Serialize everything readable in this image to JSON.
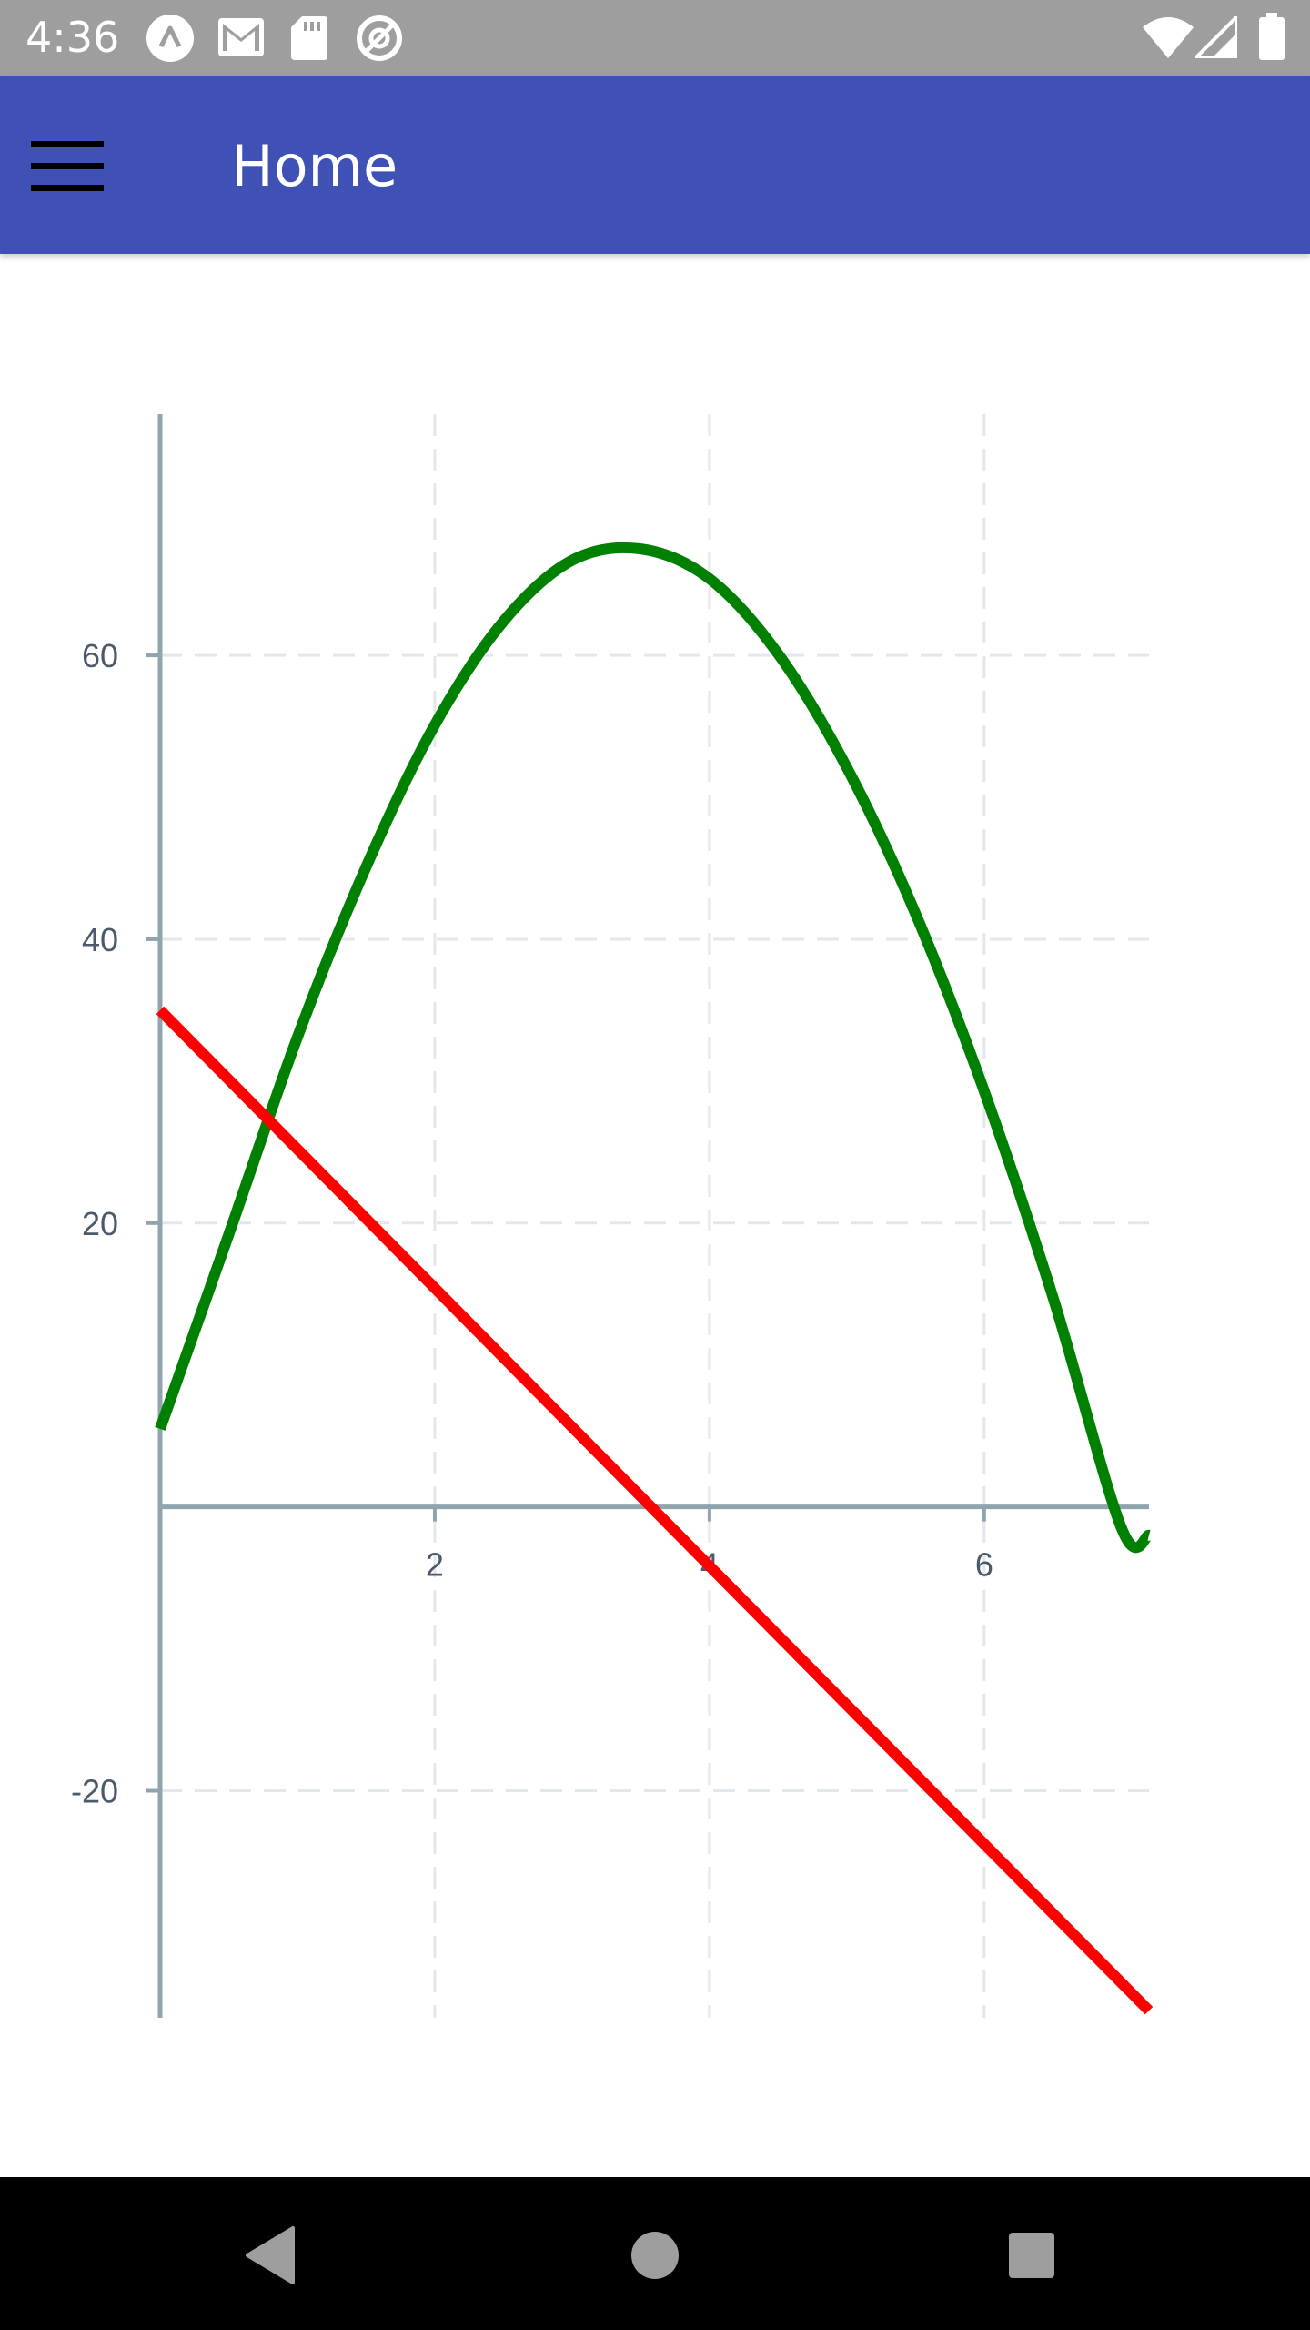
{
  "status_bar": {
    "time": "4:36",
    "left_icons": [
      "notification-a-icon",
      "gmail-icon",
      "sd-card-icon",
      "data-saver-icon"
    ],
    "right_icons": [
      "wifi-icon",
      "signal-icon",
      "battery-icon"
    ]
  },
  "app_bar": {
    "title": "Home",
    "menu_icon": "hamburger-menu-icon",
    "background": "#3f51b5"
  },
  "chart_data": {
    "type": "line",
    "title": "",
    "xlabel": "",
    "ylabel": "",
    "xlim": [
      0,
      7.2
    ],
    "ylim": [
      -36,
      77
    ],
    "x_ticks": [
      2,
      4,
      6
    ],
    "x_tick_labels": [
      "2",
      "4",
      "6"
    ],
    "y_ticks": [
      -20,
      20,
      40,
      60
    ],
    "y_tick_labels": [
      "-20",
      "20",
      "40",
      "60"
    ],
    "grid": true,
    "grid_style": "dashed",
    "series": [
      {
        "color": "#008000",
        "x": [
          0,
          0.5,
          1,
          1.5,
          2,
          2.5,
          3,
          3.5,
          4,
          4.5,
          5,
          5.5,
          6,
          6.5,
          7,
          7.2
        ],
        "values": [
          5.5,
          19.2,
          33.1,
          45.1,
          55.1,
          62.4,
          66.7,
          67.5,
          65.4,
          60.1,
          52.1,
          41.8,
          29.3,
          14.8,
          -1.5,
          -2.0
        ]
      },
      {
        "color": "#ff0000",
        "x": [
          0,
          7.2
        ],
        "values": [
          35,
          -35.5
        ]
      }
    ]
  },
  "nav_bar": {
    "back_icon": "back-triangle-icon",
    "home_icon": "home-circle-icon",
    "recents_icon": "recents-square-icon"
  }
}
